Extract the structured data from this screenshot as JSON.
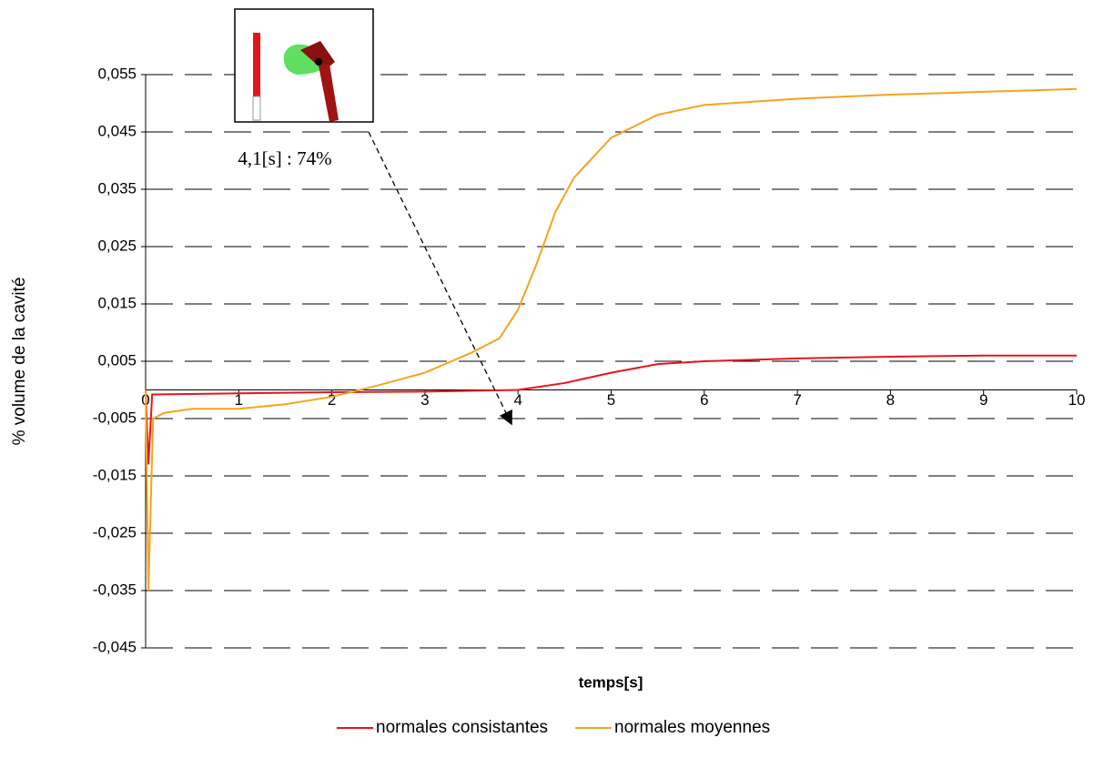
{
  "chart_data": {
    "type": "line",
    "x_label": "temps[s]",
    "y_label": "% volume de la cavité",
    "annotation": "4,1[s] : 74%",
    "xlim": [
      0,
      10
    ],
    "xticks": [
      0,
      1,
      2,
      3,
      4,
      5,
      6,
      7,
      8,
      9,
      10
    ],
    "ylim": [
      -0.045,
      0.055
    ],
    "yticks": [
      {
        "value": 0.055,
        "label": "0,055"
      },
      {
        "value": 0.045,
        "label": "0,045"
      },
      {
        "value": 0.035,
        "label": "0,035"
      },
      {
        "value": 0.025,
        "label": "0,025"
      },
      {
        "value": 0.015,
        "label": "0,015"
      },
      {
        "value": 0.005,
        "label": "0,005"
      },
      {
        "value": -0.005,
        "label": "-0,005"
      },
      {
        "value": -0.015,
        "label": "-0,015"
      },
      {
        "value": -0.025,
        "label": "-0,025"
      },
      {
        "value": -0.035,
        "label": "-0,035"
      },
      {
        "value": -0.045,
        "label": "-0,045"
      }
    ],
    "grid": true,
    "legend": "bottom",
    "series": [
      {
        "name": "normales consistantes",
        "color": "#e8141c",
        "x": [
          0,
          0.03,
          0.07,
          1,
          2,
          3,
          4,
          4.5,
          5,
          5.5,
          6,
          7,
          8,
          9,
          10
        ],
        "values": [
          0,
          -0.013,
          -0.0008,
          -0.0006,
          -0.0004,
          -0.0003,
          0,
          0.0012,
          0.003,
          0.0045,
          0.005,
          0.0055,
          0.0058,
          0.006,
          0.006
        ]
      },
      {
        "name": "normales moyennes",
        "color": "#f5a41c",
        "x": [
          0,
          0.03,
          0.08,
          0.2,
          0.5,
          1,
          1.5,
          2,
          2.5,
          3,
          3.5,
          3.8,
          4,
          4.2,
          4.4,
          4.6,
          5,
          5.5,
          6,
          7,
          8,
          9,
          10
        ],
        "values": [
          0,
          -0.035,
          -0.005,
          -0.004,
          -0.0033,
          -0.0033,
          -0.0025,
          -0.0012,
          0.0008,
          0.003,
          0.0065,
          0.009,
          0.014,
          0.022,
          0.031,
          0.037,
          0.044,
          0.048,
          0.0497,
          0.0508,
          0.0515,
          0.052,
          0.0525
        ]
      }
    ]
  }
}
